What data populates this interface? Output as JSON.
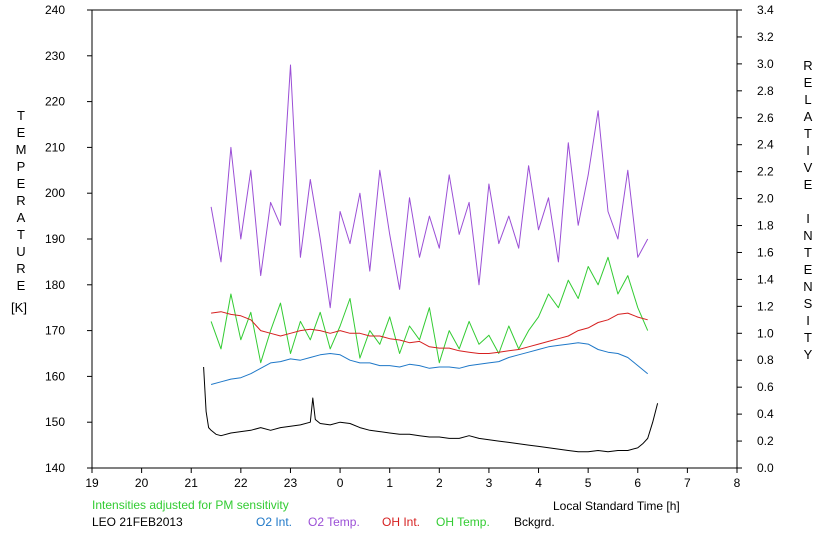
{
  "chart_data": {
    "type": "line",
    "title": "",
    "xlabel": "Local Standard Time [h]",
    "ylabel_left": "TEMPERATURE",
    "ylabel_left_unit": "[K]",
    "ylabel_right": "RELATIVE INTENSITY",
    "xlim": [
      19,
      32
    ],
    "ylim_left": [
      140,
      240
    ],
    "ylim_right": [
      0.0,
      3.4
    ],
    "grid": false,
    "x_ticks": [
      19,
      20,
      21,
      22,
      23,
      24,
      25,
      26,
      27,
      28,
      29,
      30,
      31,
      32
    ],
    "x_tick_labels": [
      "19",
      "20",
      "21",
      "22",
      "23",
      "0",
      "1",
      "2",
      "3",
      "4",
      "5",
      "6",
      "7",
      "8"
    ],
    "y_left_ticks": [
      140,
      150,
      160,
      170,
      180,
      190,
      200,
      210,
      220,
      230,
      240
    ],
    "y_left_tick_labels": [
      "140",
      "150",
      "160",
      "170",
      "180",
      "190",
      "200",
      "210",
      "220",
      "230",
      "240"
    ],
    "y_right_ticks": [
      0.0,
      0.2,
      0.4,
      0.6,
      0.8,
      1.0,
      1.2,
      1.4,
      1.6,
      1.8,
      2.0,
      2.2,
      2.4,
      2.6,
      2.8,
      3.0,
      3.2,
      3.4
    ],
    "y_right_tick_labels": [
      "0.0",
      "0.2",
      "0.4",
      "0.6",
      "0.8",
      "1.0",
      "1.2",
      "1.4",
      "1.6",
      "1.8",
      "2.0",
      "2.2",
      "2.4",
      "2.6",
      "2.8",
      "3.0",
      "3.2",
      "3.4"
    ],
    "note": "Intensities adjusted for PM sensitivity",
    "station_label": "LEO 21FEB2013",
    "series": [
      {
        "name": "O2 Int.",
        "axis": "right",
        "color": "#1f78c8",
        "x": [
          21.4,
          21.6,
          21.8,
          22.0,
          22.2,
          22.4,
          22.6,
          22.8,
          23.0,
          23.2,
          23.4,
          23.6,
          23.8,
          24.0,
          24.2,
          24.4,
          24.6,
          24.8,
          25.0,
          25.2,
          25.4,
          25.6,
          25.8,
          26.0,
          26.2,
          26.4,
          26.6,
          26.8,
          27.0,
          27.2,
          27.4,
          27.6,
          27.8,
          28.0,
          28.2,
          28.4,
          28.6,
          28.8,
          29.0,
          29.2,
          29.4,
          29.6,
          29.8,
          30.0,
          30.2
        ],
        "y": [
          0.62,
          0.64,
          0.66,
          0.67,
          0.7,
          0.74,
          0.78,
          0.79,
          0.81,
          0.8,
          0.82,
          0.84,
          0.85,
          0.84,
          0.8,
          0.78,
          0.78,
          0.76,
          0.76,
          0.75,
          0.77,
          0.76,
          0.74,
          0.75,
          0.75,
          0.74,
          0.76,
          0.77,
          0.78,
          0.79,
          0.82,
          0.84,
          0.86,
          0.88,
          0.9,
          0.91,
          0.92,
          0.93,
          0.92,
          0.88,
          0.86,
          0.85,
          0.82,
          0.76,
          0.7
        ]
      },
      {
        "name": "O2 Temp.",
        "axis": "left",
        "color": "#9b4fd6",
        "x": [
          21.4,
          21.6,
          21.8,
          22.0,
          22.2,
          22.4,
          22.6,
          22.8,
          23.0,
          23.2,
          23.4,
          23.6,
          23.8,
          24.0,
          24.2,
          24.4,
          24.6,
          24.8,
          25.0,
          25.2,
          25.4,
          25.6,
          25.8,
          26.0,
          26.2,
          26.4,
          26.6,
          26.8,
          27.0,
          27.2,
          27.4,
          27.6,
          27.8,
          28.0,
          28.2,
          28.4,
          28.6,
          28.8,
          29.0,
          29.2,
          29.4,
          29.6,
          29.8,
          30.0,
          30.2
        ],
        "y": [
          197,
          185,
          210,
          190,
          205,
          182,
          198,
          193,
          228,
          186,
          203,
          190,
          175,
          196,
          189,
          200,
          183,
          205,
          191,
          179,
          199,
          186,
          195,
          188,
          204,
          191,
          198,
          180,
          202,
          189,
          195,
          188,
          206,
          192,
          199,
          185,
          211,
          193,
          204,
          218,
          196,
          190,
          205,
          186,
          190
        ]
      },
      {
        "name": "OH Int.",
        "axis": "right",
        "color": "#d62020",
        "x": [
          21.4,
          21.6,
          21.8,
          22.0,
          22.2,
          22.4,
          22.6,
          22.8,
          23.0,
          23.2,
          23.4,
          23.6,
          23.8,
          24.0,
          24.2,
          24.4,
          24.6,
          24.8,
          25.0,
          25.2,
          25.4,
          25.6,
          25.8,
          26.0,
          26.2,
          26.4,
          26.6,
          26.8,
          27.0,
          27.2,
          27.4,
          27.6,
          27.8,
          28.0,
          28.2,
          28.4,
          28.6,
          28.8,
          29.0,
          29.2,
          29.4,
          29.6,
          29.8,
          30.0,
          30.2
        ],
        "y": [
          1.15,
          1.16,
          1.14,
          1.13,
          1.1,
          1.02,
          1.0,
          0.98,
          1.0,
          1.02,
          1.03,
          1.02,
          1.0,
          1.02,
          1.0,
          1.0,
          0.98,
          0.98,
          0.96,
          0.95,
          0.93,
          0.94,
          0.9,
          0.89,
          0.89,
          0.87,
          0.86,
          0.85,
          0.85,
          0.86,
          0.87,
          0.88,
          0.9,
          0.92,
          0.94,
          0.96,
          0.98,
          1.02,
          1.04,
          1.08,
          1.1,
          1.14,
          1.15,
          1.12,
          1.1
        ]
      },
      {
        "name": "OH Temp.",
        "axis": "left",
        "color": "#33cc33",
        "x": [
          21.4,
          21.6,
          21.8,
          22.0,
          22.2,
          22.4,
          22.6,
          22.8,
          23.0,
          23.2,
          23.4,
          23.6,
          23.8,
          24.0,
          24.2,
          24.4,
          24.6,
          24.8,
          25.0,
          25.2,
          25.4,
          25.6,
          25.8,
          26.0,
          26.2,
          26.4,
          26.6,
          26.8,
          27.0,
          27.2,
          27.4,
          27.6,
          27.8,
          28.0,
          28.2,
          28.4,
          28.6,
          28.8,
          29.0,
          29.2,
          29.4,
          29.6,
          29.8,
          30.0,
          30.2
        ],
        "y": [
          172,
          166,
          178,
          168,
          174,
          163,
          170,
          176,
          165,
          172,
          168,
          174,
          166,
          171,
          177,
          164,
          170,
          167,
          173,
          165,
          171,
          168,
          175,
          163,
          170,
          166,
          172,
          167,
          169,
          165,
          171,
          166,
          170,
          173,
          178,
          175,
          181,
          177,
          184,
          180,
          186,
          178,
          182,
          175,
          170
        ]
      },
      {
        "name": "Bckgrd.",
        "axis": "right",
        "color": "#000000",
        "x": [
          21.25,
          21.3,
          21.35,
          21.4,
          21.5,
          21.6,
          21.8,
          22.0,
          22.2,
          22.4,
          22.6,
          22.8,
          23.0,
          23.2,
          23.4,
          23.45,
          23.5,
          23.6,
          23.8,
          24.0,
          24.2,
          24.4,
          24.6,
          24.8,
          25.0,
          25.2,
          25.4,
          25.6,
          25.8,
          26.0,
          26.2,
          26.4,
          26.6,
          26.8,
          27.0,
          27.2,
          27.4,
          27.6,
          27.8,
          28.0,
          28.2,
          28.4,
          28.6,
          28.8,
          29.0,
          29.2,
          29.4,
          29.6,
          29.8,
          30.0,
          30.1,
          30.2,
          30.3,
          30.4
        ],
        "y": [
          0.75,
          0.42,
          0.3,
          0.28,
          0.25,
          0.24,
          0.26,
          0.27,
          0.28,
          0.3,
          0.28,
          0.3,
          0.31,
          0.32,
          0.34,
          0.52,
          0.36,
          0.33,
          0.32,
          0.34,
          0.33,
          0.3,
          0.28,
          0.27,
          0.26,
          0.25,
          0.25,
          0.24,
          0.23,
          0.23,
          0.22,
          0.22,
          0.24,
          0.22,
          0.21,
          0.2,
          0.19,
          0.18,
          0.17,
          0.16,
          0.15,
          0.14,
          0.13,
          0.12,
          0.12,
          0.13,
          0.12,
          0.13,
          0.13,
          0.15,
          0.18,
          0.22,
          0.34,
          0.48
        ]
      }
    ]
  }
}
